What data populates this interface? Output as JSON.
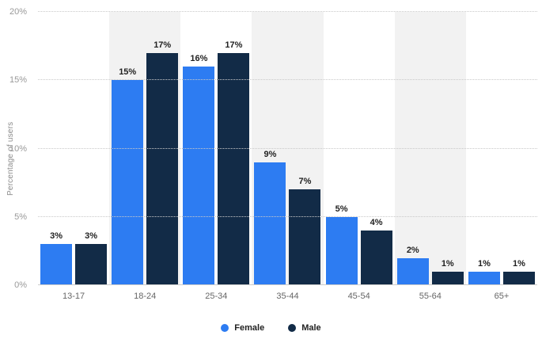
{
  "chart_data": {
    "type": "bar",
    "title": "",
    "categories": [
      "13-17",
      "18-24",
      "25-34",
      "35-44",
      "45-54",
      "55-64",
      "65+"
    ],
    "series": [
      {
        "name": "Female",
        "color": "#2d7cf2",
        "values": [
          3,
          15,
          16,
          9,
          5,
          2,
          1
        ]
      },
      {
        "name": "Male",
        "color": "#122b47",
        "values": [
          3,
          17,
          17,
          7,
          4,
          1,
          1
        ]
      }
    ],
    "xlabel": "",
    "ylabel": "Percentage of users",
    "yticks": [
      0,
      5,
      10,
      15,
      20
    ],
    "ytick_labels": [
      "0%",
      "5%",
      "10%",
      "15%",
      "20%"
    ],
    "ymax": 20,
    "value_suffix": "%",
    "grid": "horizontal-dotted",
    "band_color": "#f2f2f2",
    "banded_category_indexes": [
      1,
      3,
      5
    ],
    "legend_position": "bottom"
  }
}
